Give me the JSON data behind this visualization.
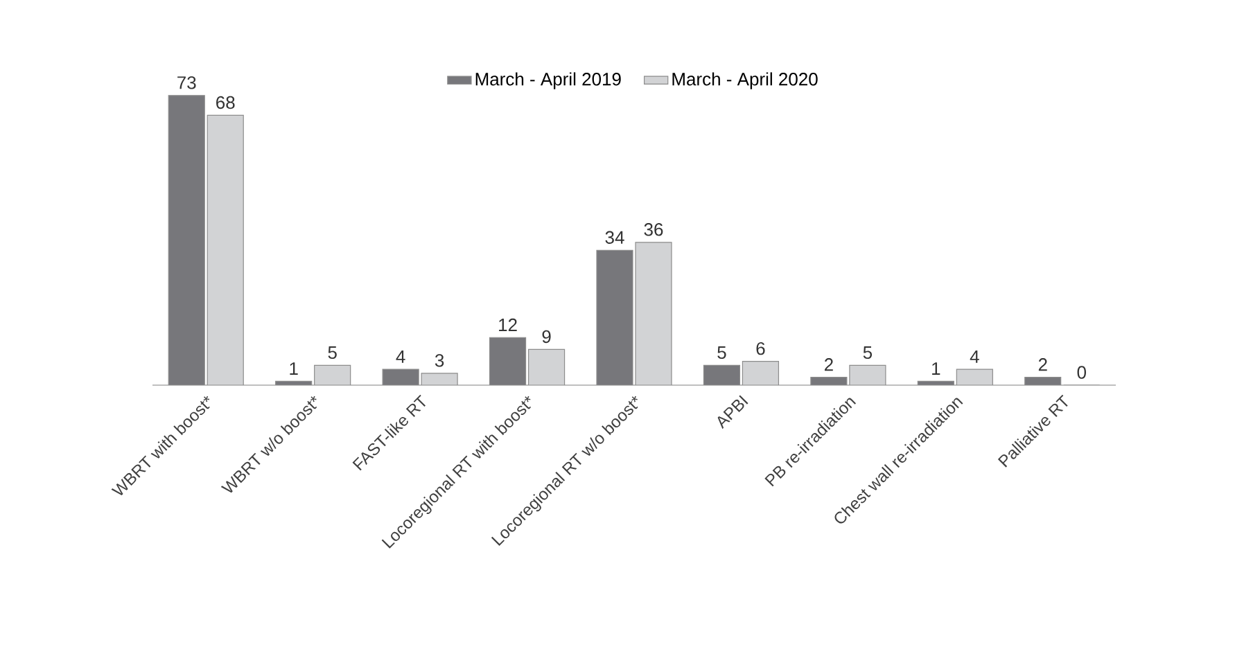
{
  "chart_data": {
    "type": "bar",
    "categories": [
      "WBRT with boost*",
      "WBRT w/o boost*",
      "FAST-like RT",
      "Locoregional RT with boost*",
      "Locoregional RT w/o boost*",
      "APBI",
      "PB re-irradiation",
      "Chest wall re-irradiation",
      "Palliative RT"
    ],
    "series": [
      {
        "name": "March - April 2019",
        "color": "#77777b",
        "values": [
          73,
          1,
          4,
          12,
          34,
          5,
          2,
          1,
          2
        ]
      },
      {
        "name": "March - April 2020",
        "color": "#d2d3d5",
        "values": [
          68,
          5,
          3,
          9,
          36,
          6,
          5,
          4,
          0
        ]
      }
    ],
    "data_labels": true,
    "legend": "top"
  }
}
